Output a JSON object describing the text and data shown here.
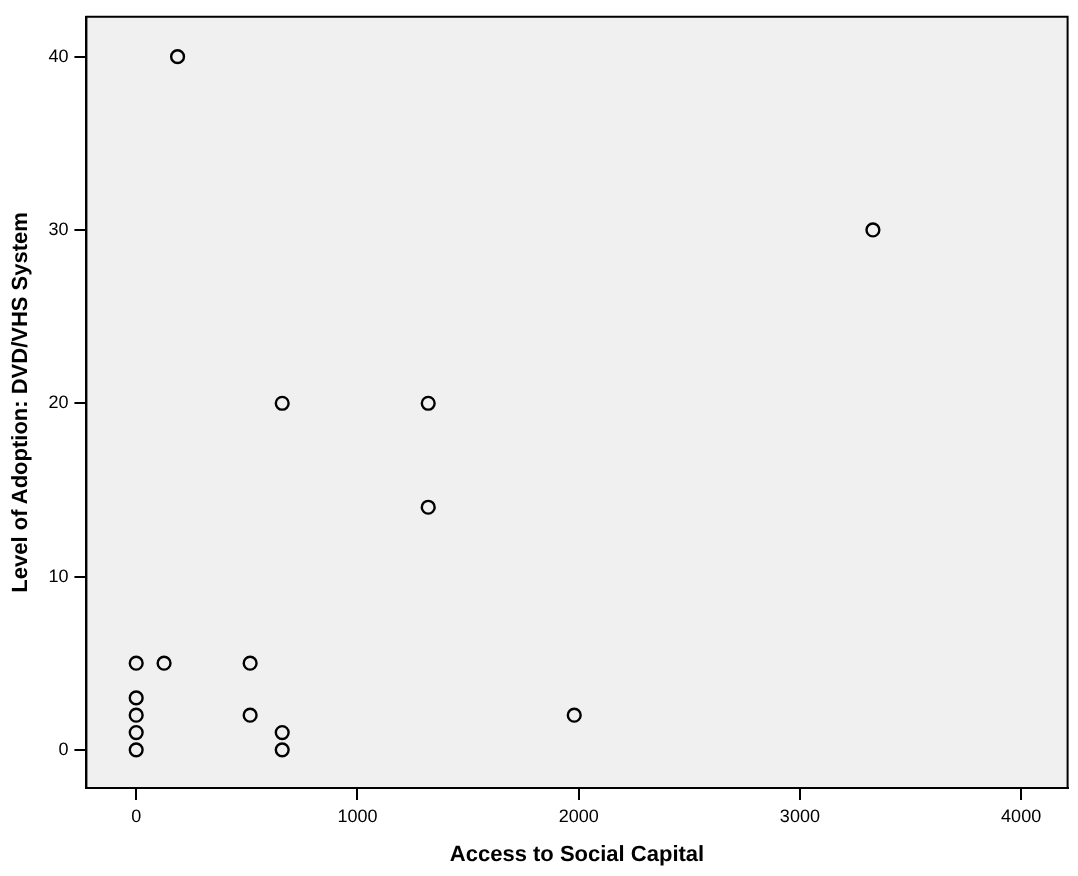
{
  "chart_data": {
    "type": "scatter",
    "xlabel": "Access to Social Capital",
    "ylabel": "Level of Adoption: DVD/VHS System",
    "x": [
      0,
      0,
      0,
      0,
      0,
      126,
      515,
      515,
      660,
      660,
      660,
      1320,
      1320,
      1980,
      187,
      3330
    ],
    "values": [
      5,
      3,
      2,
      1,
      0,
      5,
      5,
      2,
      1,
      0,
      20,
      20,
      14,
      2,
      40,
      30
    ],
    "color": "#000000",
    "marker": "circle",
    "grid": false,
    "xlim": [
      -225,
      4210
    ],
    "xticks": [
      0,
      1000,
      2000,
      3000,
      4000
    ],
    "ylim": [
      -2.2,
      42.3
    ],
    "yticks": [
      0,
      10,
      20,
      30,
      40
    ]
  }
}
